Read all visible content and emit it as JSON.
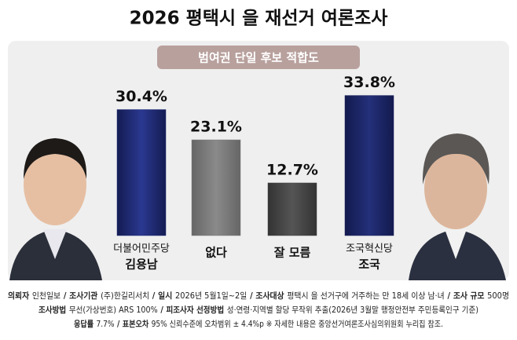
{
  "chart_data": {
    "type": "bar",
    "title": "2026 평택시 을 재선거 여론조사",
    "subtitle": "범여권 단일 후보 적합도",
    "categories": [
      {
        "party": "더불어민주당",
        "name": "김용남"
      },
      {
        "name": "없다"
      },
      {
        "name": "잘 모름"
      },
      {
        "party": "조국혁신당",
        "name": "조국"
      }
    ],
    "values": [
      30.4,
      23.1,
      12.7,
      33.8
    ],
    "value_labels": [
      "30.4%",
      "23.1%",
      "12.7%",
      "33.8%"
    ],
    "colors": [
      "#1f2a78",
      "#7a7a7a",
      "#444444",
      "#1a235f"
    ],
    "ylim": [
      0,
      36
    ]
  },
  "notes": {
    "separator": "/",
    "lines": [
      [
        {
          "label": "의뢰자",
          "text": "인천일보"
        },
        {
          "label": "조사기관",
          "text": "(주)한길리서치"
        },
        {
          "label": "일시",
          "text": "2026년 5월1일~2일"
        },
        {
          "label": "조사대상",
          "text": "평택시 을 선거구에 거주하는 만 18세 이상 남·녀"
        },
        {
          "label": "조사 규모",
          "text": "500명"
        }
      ],
      [
        {
          "label": "조사방법",
          "text": "무선(가상번호) ARS 100%"
        },
        {
          "label": "피조사자 선정방법",
          "text": "성·연령·지역별 할당 무작위 추출(2026년 3월말 행정안전부 주민등록인구 기준)"
        }
      ],
      [
        {
          "label": "응답률",
          "text": "7.7%"
        },
        {
          "label": "표본오차",
          "text": "95% 신뢰수준에 오차범위 ± 4.4%p ※ 자세한 내용은 중앙선거여론조사심의위원회 누리집 참조."
        }
      ]
    ]
  }
}
